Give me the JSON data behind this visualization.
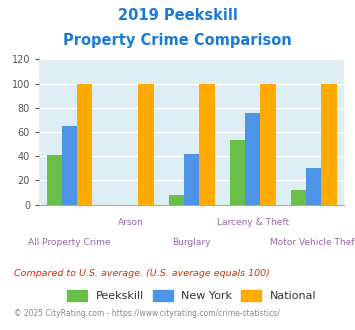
{
  "title_line1": "2019 Peekskill",
  "title_line2": "Property Crime Comparison",
  "title_color": "#1a7ad4",
  "categories": [
    "All Property Crime",
    "Arson",
    "Burglary",
    "Larceny & Theft",
    "Motor Vehicle Theft"
  ],
  "peekskill": [
    41,
    0,
    8,
    53,
    12
  ],
  "new_york": [
    65,
    0,
    42,
    76,
    30
  ],
  "national": [
    100,
    100,
    100,
    100,
    100
  ],
  "colors": {
    "peekskill": "#6abf4b",
    "new_york": "#4d94e8",
    "national": "#ffaa00"
  },
  "ylim": [
    0,
    120
  ],
  "yticks": [
    0,
    20,
    40,
    60,
    80,
    100,
    120
  ],
  "bar_width": 0.25,
  "background_color": "#ddeef5",
  "grid_color": "#ffffff",
  "xlabel_color": "#9966aa",
  "footnote1": "Compared to U.S. average. (U.S. average equals 100)",
  "footnote2": "© 2025 CityRating.com - https://www.cityrating.com/crime-statistics/",
  "footnote1_color": "#cc3300",
  "footnote2_color": "#888888",
  "legend_labels": [
    "Peekskill",
    "New York",
    "National"
  ],
  "label_top": [
    "",
    "Arson",
    "",
    "Larceny & Theft",
    ""
  ],
  "label_bottom": [
    "All Property Crime",
    "",
    "Burglary",
    "",
    "Motor Vehicle Theft"
  ]
}
